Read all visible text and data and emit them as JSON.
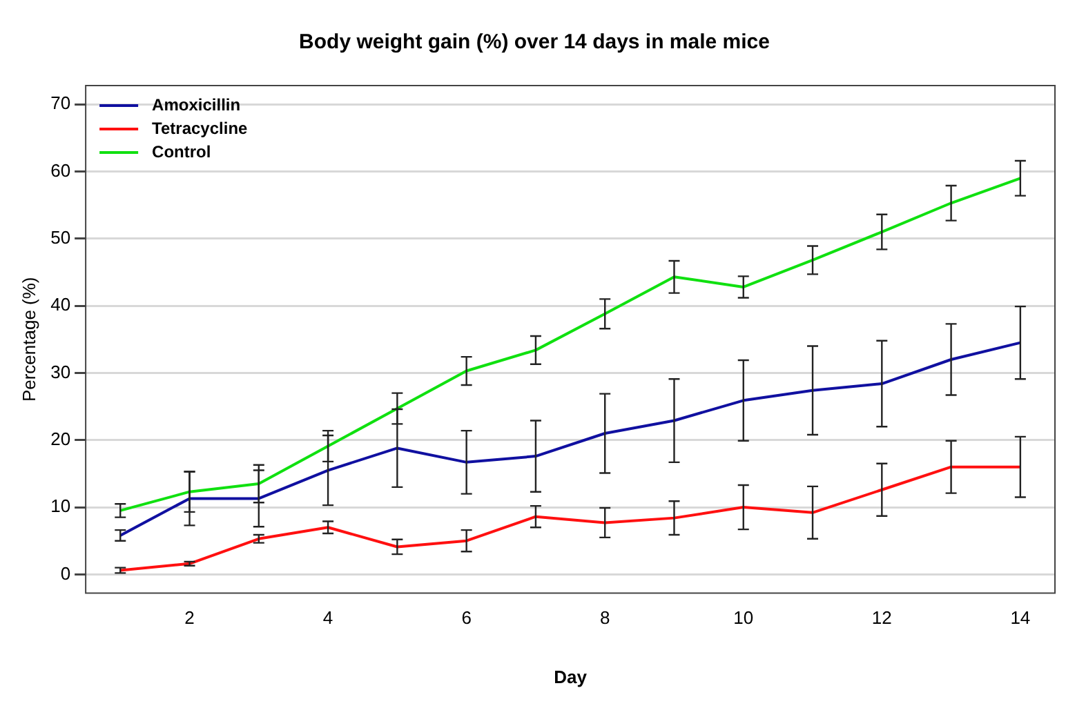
{
  "chart_data": {
    "type": "line",
    "title": "Body weight gain (%) over 14 days in male mice",
    "xlabel": "Day",
    "ylabel": "Percentage (%)",
    "x": [
      1,
      2,
      3,
      4,
      5,
      6,
      7,
      8,
      9,
      10,
      11,
      12,
      13,
      14
    ],
    "series": [
      {
        "name": "Amoxicillin",
        "color": "#1010a0",
        "values": [
          5.8,
          11.3,
          11.3,
          15.5,
          18.8,
          16.7,
          17.6,
          21.0,
          22.9,
          25.9,
          27.4,
          28.4,
          32.0,
          34.5
        ],
        "errors": [
          0.8,
          4,
          4.2,
          5.2,
          5.8,
          4.7,
          5.3,
          5.9,
          6.2,
          6,
          6.6,
          6.4,
          5.3,
          5.4
        ]
      },
      {
        "name": "Tetracycline",
        "color": "#ff1010",
        "values": [
          0.6,
          1.6,
          5.3,
          7.0,
          4.1,
          5.0,
          8.6,
          7.7,
          8.4,
          10.0,
          9.2,
          12.6,
          16.0,
          16.0
        ],
        "errors": [
          0.4,
          0.3,
          0.6,
          0.9,
          1.1,
          1.6,
          1.6,
          2.2,
          2.5,
          3.3,
          3.9,
          3.9,
          3.9,
          4.5
        ]
      },
      {
        "name": "Control",
        "color": "#10e010",
        "values": [
          9.5,
          12.3,
          13.5,
          19.1,
          24.7,
          30.3,
          33.4,
          38.8,
          44.3,
          42.8,
          46.8,
          51.0,
          55.3,
          59.0
        ],
        "errors": [
          1.0,
          3.0,
          2.8,
          2.3,
          2.3,
          2.1,
          2.1,
          2.2,
          2.4,
          1.6,
          2.1,
          2.6,
          2.6,
          2.6
        ]
      }
    ],
    "xlim": [
      0.5,
      14.5
    ],
    "xticks": [
      2,
      4,
      6,
      8,
      10,
      12,
      14
    ],
    "ylim": [
      -2.8,
      72.8
    ],
    "yticks": [
      0,
      10,
      20,
      30,
      40,
      50,
      60,
      70
    ],
    "grid": "y",
    "legend": "top left",
    "marker": "none",
    "line_style": "solid"
  }
}
